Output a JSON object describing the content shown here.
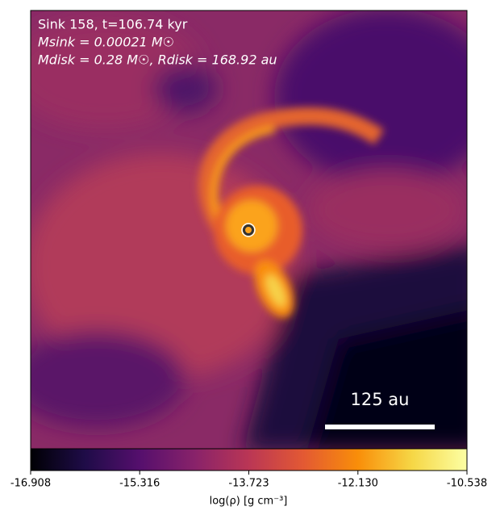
{
  "chart_data": {
    "type": "heatmap",
    "annotations": [
      "Sink 158, t=106.74 kyr",
      "Msink = 0.00021 M☉",
      "Mdisk = 0.28 M☉, Rdisk = 168.92 au"
    ],
    "scale_bar_label": "125 au",
    "colorbar": {
      "label": "log(ρ) [g cm⁻³]",
      "lim": [
        -16.908,
        -10.538
      ],
      "ticks": [
        -16.908,
        -15.316,
        -13.723,
        {
          "value": -12.13,
          "label": "-12.130"
        },
        -10.538
      ],
      "colormap": [
        "#000004",
        "#1f0c48",
        "#550f6d",
        "#88226a",
        "#ba3655",
        "#e35933",
        "#f98e09",
        "#f6d746",
        "#fcffa4"
      ]
    }
  }
}
